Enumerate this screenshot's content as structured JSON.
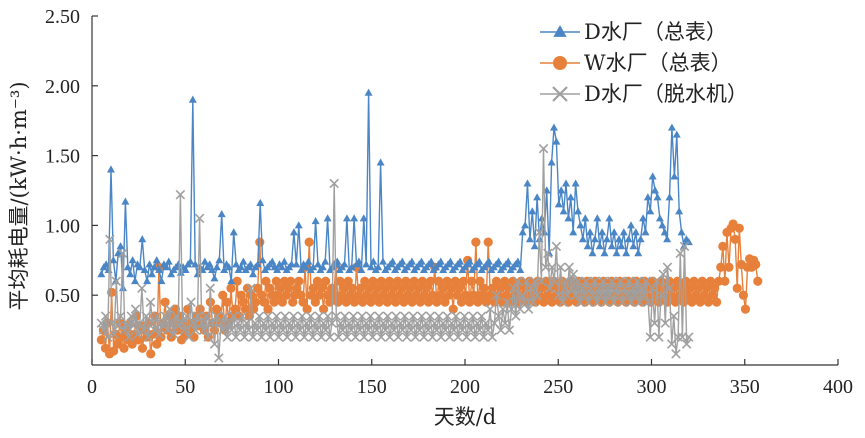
{
  "chart_data": {
    "type": "line",
    "title": "",
    "xlabel": "天数/d",
    "ylabel": "平均耗电量/(kW·h·m⁻³)",
    "xlim": [
      0,
      400
    ],
    "ylim": [
      0,
      2.5
    ],
    "xticks": [
      "0",
      "50",
      "100",
      "150",
      "200",
      "250",
      "300",
      "350",
      "400"
    ],
    "yticks": [
      "0.50",
      "1.00",
      "1.50",
      "2.00",
      "2.50"
    ],
    "grid": false,
    "legend_position": "top-right",
    "series": [
      {
        "name": "D水厂（总表）",
        "color": "#4a86c5",
        "marker": "triangle",
        "x_start": 5,
        "x_end": 320,
        "values": [
          0.65,
          0.7,
          0.72,
          0.68,
          1.4,
          0.75,
          0.6,
          0.8,
          0.85,
          0.55,
          1.17,
          0.7,
          0.65,
          0.75,
          0.6,
          0.72,
          0.7,
          0.9,
          0.68,
          0.6,
          0.72,
          0.65,
          0.7,
          0.75,
          0.68,
          0.6,
          0.72,
          0.7,
          0.74,
          0.65,
          0.68,
          0.7,
          0.72,
          0.66,
          0.7,
          0.68,
          0.72,
          0.74,
          1.9,
          0.72,
          0.65,
          0.7,
          0.68,
          0.74,
          0.7,
          0.72,
          0.68,
          0.62,
          0.7,
          0.75,
          1.08,
          0.68,
          0.72,
          0.7,
          0.6,
          0.95,
          0.72,
          0.68,
          0.7,
          0.74,
          0.68,
          0.7,
          0.72,
          0.65,
          0.7,
          0.72,
          1.16,
          0.75,
          0.68,
          0.7,
          0.72,
          0.74,
          0.7,
          0.68,
          0.72,
          0.7,
          0.74,
          0.68,
          0.7,
          0.72,
          0.95,
          0.72,
          1.0,
          0.68,
          0.72,
          0.7,
          0.74,
          0.68,
          0.7,
          1.03,
          0.72,
          0.68,
          0.7,
          0.74,
          1.05,
          0.68,
          0.7,
          0.72,
          0.74,
          0.68,
          0.7,
          0.72,
          1.05,
          0.68,
          0.7,
          1.05,
          0.72,
          0.74,
          0.68,
          1.05,
          0.72,
          1.95,
          0.7,
          0.74,
          0.68,
          0.7,
          1.45,
          0.74,
          0.68,
          0.7,
          0.72,
          0.74,
          0.68,
          0.7,
          0.72,
          0.74,
          0.68,
          0.7,
          0.72,
          0.74,
          0.68,
          0.7,
          0.72,
          0.74,
          0.68,
          0.7,
          0.72,
          0.74,
          0.68,
          0.7,
          0.72,
          0.74,
          0.68,
          0.7,
          0.72,
          0.74,
          0.68,
          0.7,
          0.72,
          0.74,
          0.68,
          0.7,
          0.72,
          0.74,
          0.68,
          0.7,
          0.72,
          0.74,
          0.68,
          0.7,
          0.72,
          0.74,
          0.68,
          0.7,
          0.72,
          0.74,
          0.68,
          0.7,
          0.72,
          0.74,
          0.68,
          0.7,
          0.72,
          0.74,
          0.68,
          0.95,
          1.0,
          1.3,
          0.9,
          1.1,
          0.85,
          1.2,
          0.9,
          1.05,
          0.95,
          1.25,
          0.8,
          1.45,
          1.7,
          1.6,
          1.15,
          1.25,
          1.1,
          1.3,
          1.05,
          1.2,
          0.95,
          1.3,
          1.1,
          1.0,
          0.9,
          1.05,
          0.85,
          0.95,
          0.8,
          0.9,
          1.05,
          0.85,
          0.95,
          0.8,
          0.9,
          1.05,
          0.85,
          0.95,
          0.8,
          0.9,
          0.85,
          0.95,
          0.8,
          0.9,
          1.0,
          0.85,
          0.95,
          0.8,
          0.9,
          1.05,
          0.95,
          1.2,
          1.1,
          1.35,
          1.25,
          1.2,
          1.05,
          1.0,
          0.95,
          0.9,
          1.2,
          1.7,
          1.35,
          1.65,
          1.1,
          0.95,
          0.85,
          0.9,
          0.88
        ]
      },
      {
        "name": "W水厂（总表）",
        "color": "#e6803a",
        "marker": "circle",
        "x_start": 5,
        "x_end": 357,
        "values": [
          0.18,
          0.25,
          0.12,
          0.3,
          0.08,
          0.52,
          0.1,
          0.22,
          0.15,
          0.3,
          0.2,
          0.12,
          0.25,
          0.18,
          0.3,
          0.15,
          0.22,
          0.35,
          0.18,
          0.28,
          0.12,
          0.25,
          0.2,
          0.3,
          0.08,
          0.22,
          0.35,
          0.15,
          0.7,
          0.2,
          0.3,
          0.45,
          0.25,
          0.35,
          0.2,
          0.3,
          0.4,
          0.25,
          0.35,
          0.18,
          0.3,
          0.22,
          0.4,
          0.25,
          0.3,
          0.2,
          0.35,
          0.28,
          0.4,
          0.3,
          0.25,
          0.35,
          0.2,
          0.45,
          0.3,
          0.25,
          0.4,
          0.35,
          0.3,
          0.5,
          0.25,
          0.45,
          0.3,
          0.55,
          0.35,
          0.4,
          0.6,
          0.35,
          0.5,
          0.45,
          0.4,
          0.55,
          0.35,
          0.5,
          0.4,
          0.45,
          0.55,
          0.88,
          0.5,
          0.45,
          0.6,
          0.4,
          0.55,
          0.5,
          0.45,
          0.6,
          0.5,
          0.55,
          0.45,
          0.6,
          0.5,
          0.55,
          0.6,
          0.45,
          0.5,
          0.55,
          0.6,
          0.5,
          0.45,
          0.7,
          0.4,
          0.88,
          0.5,
          0.55,
          0.45,
          0.6,
          0.5,
          0.55,
          0.4,
          0.6,
          0.5,
          0.45,
          0.55,
          0.5,
          0.72,
          0.45,
          0.6,
          0.5,
          0.55,
          0.45,
          0.6,
          0.5,
          0.55,
          0.45,
          0.7,
          0.5,
          0.55,
          0.45,
          0.6,
          0.5,
          0.55,
          0.45,
          0.6,
          0.5,
          0.55,
          0.45,
          0.6,
          0.5,
          0.55,
          0.45,
          0.6,
          0.5,
          0.55,
          0.45,
          0.6,
          0.5,
          0.55,
          0.45,
          0.6,
          0.5,
          0.55,
          0.45,
          0.6,
          0.5,
          0.55,
          0.45,
          0.6,
          0.5,
          0.55,
          0.45,
          0.6,
          0.5,
          0.7,
          0.45,
          0.6,
          0.5,
          0.55,
          0.45,
          0.6,
          0.5,
          0.55,
          0.4,
          0.6,
          0.5,
          0.55,
          0.45,
          0.6,
          0.5,
          0.75,
          0.45,
          0.6,
          0.5,
          0.88,
          0.45,
          0.6,
          0.5,
          0.55,
          0.45,
          0.88,
          0.5,
          0.55,
          0.45,
          0.6,
          0.5,
          0.55,
          0.45,
          0.6,
          0.5,
          0.55,
          0.45,
          0.6,
          0.5,
          0.55,
          0.45,
          0.6,
          0.5,
          0.55,
          0.45,
          0.6,
          0.5,
          0.55,
          0.45,
          0.6,
          0.5,
          0.55,
          0.45,
          0.6,
          0.5,
          0.55,
          0.45,
          0.6,
          0.5,
          0.55,
          0.45,
          0.6,
          0.5,
          0.55,
          0.45,
          0.6,
          0.5,
          0.55,
          0.45,
          0.6,
          0.5,
          0.55,
          0.45,
          0.6,
          0.5,
          0.55,
          0.45,
          0.6,
          0.5,
          0.55,
          0.45,
          0.6,
          0.5,
          0.55,
          0.45,
          0.6,
          0.5,
          0.55,
          0.45,
          0.6,
          0.5,
          0.55,
          0.45,
          0.6,
          0.5,
          0.55,
          0.45,
          0.6,
          0.5,
          0.55,
          0.45,
          0.6,
          0.5,
          0.55,
          0.45,
          0.6,
          0.5,
          0.55,
          0.45,
          0.6,
          0.5,
          0.55,
          0.45,
          0.6,
          0.5,
          0.55,
          0.45,
          0.6,
          0.5,
          0.55,
          0.45,
          0.6,
          0.5,
          0.55,
          0.45,
          0.6,
          0.5,
          0.55,
          0.45,
          0.6,
          0.5,
          0.55,
          0.45,
          0.6,
          0.5,
          0.55,
          0.45,
          0.6,
          0.7,
          0.85,
          0.6,
          0.95,
          0.7,
          0.98,
          1.01,
          0.9,
          0.55,
          0.98,
          0.72,
          0.5,
          0.4,
          0.7,
          0.76,
          0.7,
          0.75,
          0.72,
          0.6
        ]
      },
      {
        "name": "D水厂（脱水机）",
        "color": "#a0a0a0",
        "marker": "x",
        "x_start": 5,
        "x_end": 320,
        "values": [
          0.3,
          0.25,
          0.35,
          0.2,
          0.9,
          0.3,
          0.22,
          0.6,
          0.28,
          0.35,
          0.8,
          0.25,
          0.3,
          0.2,
          0.35,
          0.28,
          0.4,
          0.22,
          0.3,
          0.55,
          0.25,
          0.35,
          0.2,
          0.45,
          0.3,
          0.25,
          0.35,
          0.22,
          0.3,
          0.28,
          0.35,
          0.25,
          0.4,
          0.3,
          0.22,
          0.35,
          0.28,
          1.22,
          0.3,
          0.25,
          0.35,
          0.2,
          0.45,
          0.3,
          0.25,
          0.35,
          1.05,
          0.3,
          0.25,
          0.35,
          0.2,
          0.55,
          0.3,
          0.15,
          0.35,
          0.05,
          0.3,
          0.25,
          0.35,
          0.2,
          0.3,
          0.25,
          0.35,
          0.2,
          0.3,
          0.25,
          0.35,
          0.2,
          0.3,
          0.25,
          0.55,
          0.2,
          0.3,
          0.25,
          0.35,
          0.2,
          0.3,
          0.25,
          0.35,
          0.2,
          0.3,
          0.25,
          0.35,
          0.2,
          0.3,
          0.25,
          0.35,
          0.2,
          0.3,
          0.25,
          0.35,
          0.2,
          0.3,
          0.25,
          0.35,
          0.2,
          0.3,
          0.25,
          0.35,
          0.2,
          0.3,
          0.25,
          0.35,
          0.2,
          0.3,
          0.25,
          0.35,
          0.2,
          0.3,
          1.3,
          0.35,
          0.2,
          0.3,
          0.25,
          0.35,
          0.2,
          0.3,
          0.25,
          0.35,
          0.2,
          0.3,
          0.25,
          0.35,
          0.2,
          0.3,
          0.25,
          0.35,
          0.2,
          0.3,
          0.25,
          0.35,
          0.2,
          0.3,
          0.25,
          0.35,
          0.2,
          0.3,
          0.25,
          0.35,
          0.2,
          0.3,
          0.25,
          0.35,
          0.2,
          0.3,
          0.25,
          0.35,
          0.2,
          0.3,
          0.25,
          0.35,
          0.2,
          0.3,
          0.25,
          0.35,
          0.2,
          0.3,
          0.25,
          0.35,
          0.2,
          0.3,
          0.25,
          0.35,
          0.2,
          0.3,
          0.25,
          0.35,
          0.2,
          0.3,
          0.25,
          0.35,
          0.2,
          0.3,
          0.25,
          0.35,
          0.2,
          0.3,
          0.25,
          0.35,
          0.2,
          0.3,
          0.25,
          0.4,
          0.2,
          0.3,
          0.5,
          0.35,
          0.25,
          0.4,
          0.3,
          0.45,
          0.25,
          0.4,
          0.55,
          0.35,
          0.6,
          0.4,
          0.5,
          0.45,
          0.6,
          0.4,
          0.55,
          0.45,
          0.6,
          0.5,
          0.95,
          0.6,
          1.55,
          0.7,
          0.8,
          0.55,
          0.7,
          0.6,
          0.85,
          0.5,
          0.7,
          0.45,
          0.6,
          0.5,
          0.7,
          0.55,
          0.65,
          0.5,
          0.6,
          0.45,
          0.55,
          0.5,
          0.6,
          0.45,
          0.55,
          0.5,
          0.6,
          0.45,
          0.55,
          0.5,
          0.6,
          0.45,
          0.55,
          0.5,
          0.6,
          0.45,
          0.55,
          0.5,
          0.6,
          0.45,
          0.55,
          0.5,
          0.6,
          0.45,
          0.55,
          0.5,
          0.6,
          0.45,
          0.55,
          0.5,
          0.6,
          0.45,
          0.2,
          0.55,
          0.3,
          0.6,
          0.2,
          0.5,
          0.65,
          0.3,
          0.7,
          0.55,
          0.15,
          0.35,
          0.08,
          0.2,
          0.8,
          0.2,
          0.85,
          0.15,
          0.2
        ]
      }
    ]
  }
}
